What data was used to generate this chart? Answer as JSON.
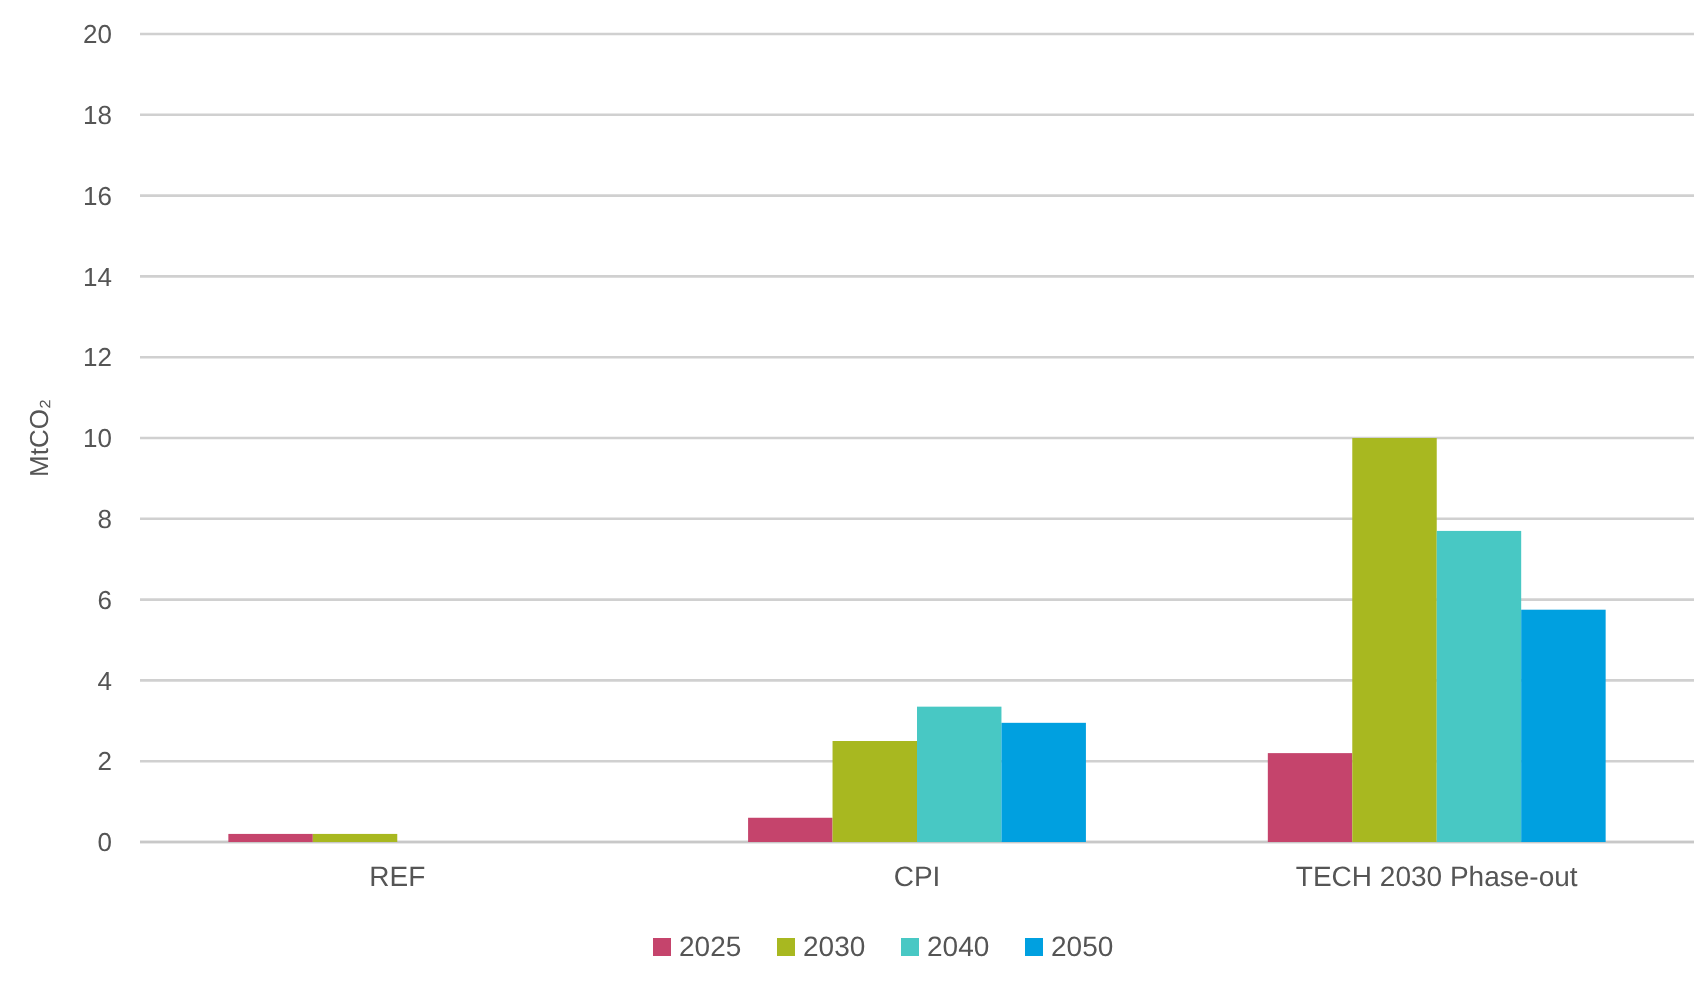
{
  "chart_data": {
    "type": "bar",
    "ylabel": "MtCO₂",
    "categories": [
      "REF",
      "CPI",
      "TECH 2030 Phase-out"
    ],
    "series": [
      {
        "name": "2025",
        "color": "#c5446c",
        "values": [
          0.2,
          0.6,
          2.2
        ]
      },
      {
        "name": "2030",
        "color": "#a8b820",
        "values": [
          0.2,
          2.5,
          10.0
        ]
      },
      {
        "name": "2040",
        "color": "#48c8c4",
        "values": [
          0,
          3.35,
          7.7
        ]
      },
      {
        "name": "2050",
        "color": "#00a0e0",
        "values": [
          0,
          2.95,
          5.75
        ]
      }
    ],
    "ylim": [
      0,
      20
    ],
    "yticks": [
      0,
      2,
      4,
      6,
      8,
      10,
      12,
      14,
      16,
      18,
      20
    ],
    "grid": "y",
    "legend": "bottom"
  }
}
